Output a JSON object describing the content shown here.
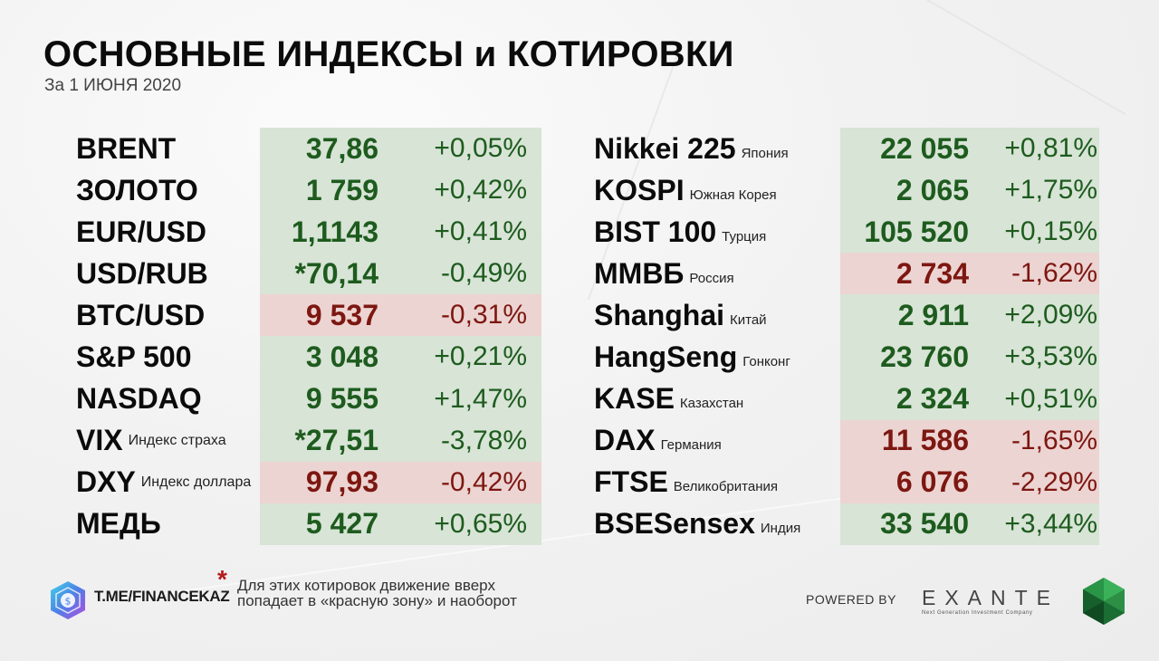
{
  "header": {
    "title": "ОСНОВНЫЕ ИНДЕКСЫ и КОТИРОВКИ",
    "subtitle": "За 1 ИЮНЯ 2020"
  },
  "left_table": [
    {
      "name": "BRENT",
      "note": "",
      "value": "37,86",
      "change": "+0,05%",
      "trend": "up"
    },
    {
      "name": "ЗОЛОТО",
      "note": "",
      "value": "1 759",
      "change": "+0,42%",
      "trend": "up"
    },
    {
      "name": "EUR/USD",
      "note": "",
      "value": "1,1143",
      "change": "+0,41%",
      "trend": "up"
    },
    {
      "name": "USD/RUB",
      "note": "",
      "value": "*70,14",
      "change": "-0,49%",
      "trend": "up"
    },
    {
      "name": "BTC/USD",
      "note": "",
      "value": "9 537",
      "change": "-0,31%",
      "trend": "down"
    },
    {
      "name": "S&P 500",
      "note": "",
      "value": "3 048",
      "change": "+0,21%",
      "trend": "up"
    },
    {
      "name": "NASDAQ",
      "note": "",
      "value": "9 555",
      "change": "+1,47%",
      "trend": "up"
    },
    {
      "name": "VIX",
      "note": "Индекс страха",
      "value": "*27,51",
      "change": "-3,78%",
      "trend": "up"
    },
    {
      "name": "DXY",
      "note": "Индекс доллара",
      "value": "97,93",
      "change": "-0,42%",
      "trend": "down"
    },
    {
      "name": "МЕДЬ",
      "note": "",
      "value": "5 427",
      "change": "+0,65%",
      "trend": "up"
    }
  ],
  "right_table": [
    {
      "name": "Nikkei 225",
      "note": "Япония",
      "value": "22 055",
      "change": "+0,81%",
      "trend": "up"
    },
    {
      "name": "KOSPI",
      "note": "Южная Корея",
      "value": "2 065",
      "change": "+1,75%",
      "trend": "up"
    },
    {
      "name": "BIST 100",
      "note": "Турция",
      "value": "105 520",
      "change": "+0,15%",
      "trend": "up"
    },
    {
      "name": "ММВБ",
      "note": "Россия",
      "value": "2 734",
      "change": "-1,62%",
      "trend": "down"
    },
    {
      "name": "Shanghai",
      "note": "Китай",
      "value": "2 911",
      "change": "+2,09%",
      "trend": "up"
    },
    {
      "name": "HangSeng",
      "note": "Гонконг",
      "value": "23 760",
      "change": "+3,53%",
      "trend": "up"
    },
    {
      "name": "KASE",
      "note": "Казахстан",
      "value": "2 324",
      "change": "+0,51%",
      "trend": "up"
    },
    {
      "name": "DAX",
      "note": "Германия",
      "value": "11 586",
      "change": "-1,65%",
      "trend": "down"
    },
    {
      "name": "FTSE",
      "note": "Великобритания",
      "value": "6 076",
      "change": "-2,29%",
      "trend": "down"
    },
    {
      "name": "BSESensex",
      "note": "Индия",
      "value": "33 540",
      "change": "+3,44%",
      "trend": "up"
    }
  ],
  "footer": {
    "channel": "T.ME/FINANCEKAZ",
    "asterisk": "*",
    "note": "Для этих котировок движение вверх попадает в «красную зону» и наоборот",
    "powered_by": "POWERED BY",
    "brand": "EXANTE",
    "brand_tagline": "Next Generation Investment Company"
  },
  "colors": {
    "up_text": "#1e5b1e",
    "down_text": "#7d1711",
    "up_bg": "#d7e4d6",
    "down_bg": "#ecd4d2",
    "asterisk": "#b51a1a"
  }
}
